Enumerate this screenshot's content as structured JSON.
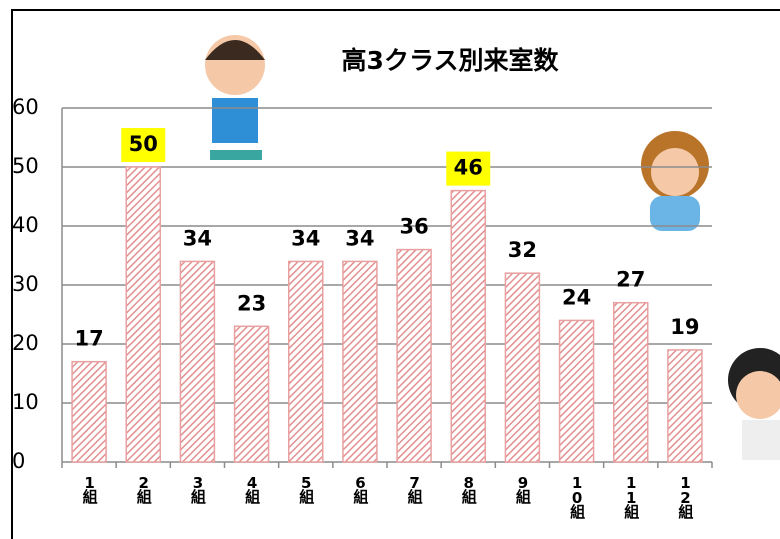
{
  "chart_data": {
    "type": "bar",
    "title": "高3クラス別来室数",
    "categories": [
      "1組",
      "2組",
      "3組",
      "4組",
      "5組",
      "6組",
      "7組",
      "8組",
      "9組",
      "10組",
      "11組",
      "12組"
    ],
    "values": [
      17,
      50,
      34,
      23,
      34,
      34,
      36,
      46,
      32,
      24,
      27,
      19
    ],
    "color": "#e8a0a0",
    "label_highlight": [
      false,
      true,
      false,
      false,
      false,
      false,
      false,
      true,
      false,
      false,
      false,
      false
    ],
    "label_highlight_color": "#ffff00",
    "ylim": [
      0,
      60
    ],
    "yticks": [
      0,
      10,
      20,
      30,
      40,
      50,
      60
    ],
    "grid": true
  }
}
